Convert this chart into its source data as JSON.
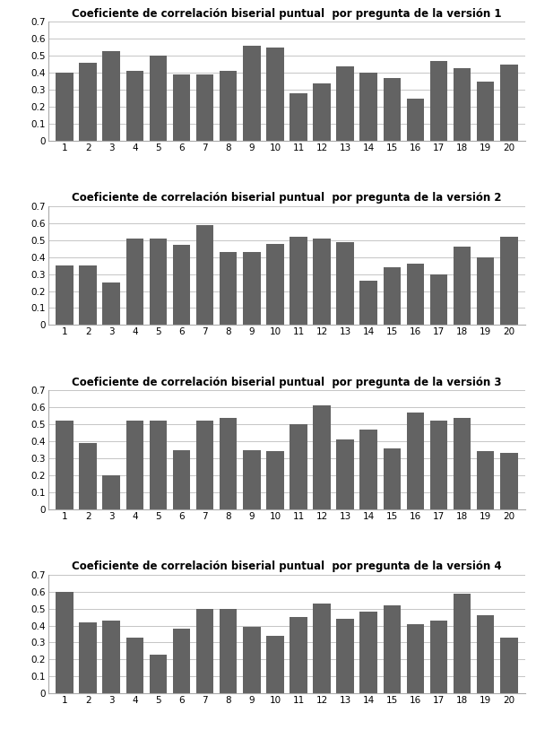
{
  "titles": [
    "Coeficiente de correlación biserial puntual  por pregunta de la versión 1",
    "Coeficiente de correlación biserial puntual  por pregunta de la versión 2",
    "Coeficiente de correlación biserial puntual  por pregunta de la versión 3",
    "Coeficiente de correlación biserial puntual  por pregunta de la versión 4"
  ],
  "series": [
    [
      0.4,
      0.46,
      0.53,
      0.41,
      0.5,
      0.39,
      0.39,
      0.41,
      0.56,
      0.55,
      0.28,
      0.34,
      0.44,
      0.4,
      0.37,
      0.25,
      0.47,
      0.43,
      0.35,
      0.45
    ],
    [
      0.35,
      0.35,
      0.25,
      0.51,
      0.51,
      0.47,
      0.59,
      0.43,
      0.43,
      0.48,
      0.52,
      0.51,
      0.49,
      0.26,
      0.34,
      0.36,
      0.3,
      0.46,
      0.4,
      0.52
    ],
    [
      0.52,
      0.39,
      0.2,
      0.52,
      0.52,
      0.35,
      0.52,
      0.54,
      0.35,
      0.34,
      0.5,
      0.61,
      0.41,
      0.47,
      0.36,
      0.57,
      0.52,
      0.54,
      0.34,
      0.33
    ],
    [
      0.6,
      0.42,
      0.43,
      0.33,
      0.23,
      0.38,
      0.5,
      0.5,
      0.39,
      0.34,
      0.45,
      0.53,
      0.44,
      0.48,
      0.52,
      0.41,
      0.43,
      0.59,
      0.46,
      0.33
    ]
  ],
  "bar_color": "#636363",
  "ylim": [
    0,
    0.7
  ],
  "yticks": [
    0,
    0.1,
    0.2,
    0.3,
    0.4,
    0.5,
    0.6,
    0.7
  ],
  "xticks": [
    1,
    2,
    3,
    4,
    5,
    6,
    7,
    8,
    9,
    10,
    11,
    12,
    13,
    14,
    15,
    16,
    17,
    18,
    19,
    20
  ],
  "title_fontsize": 8.5,
  "tick_fontsize": 7.5,
  "background_color": "#ffffff",
  "grid_color": "#bbbbbb",
  "bar_width": 0.75
}
